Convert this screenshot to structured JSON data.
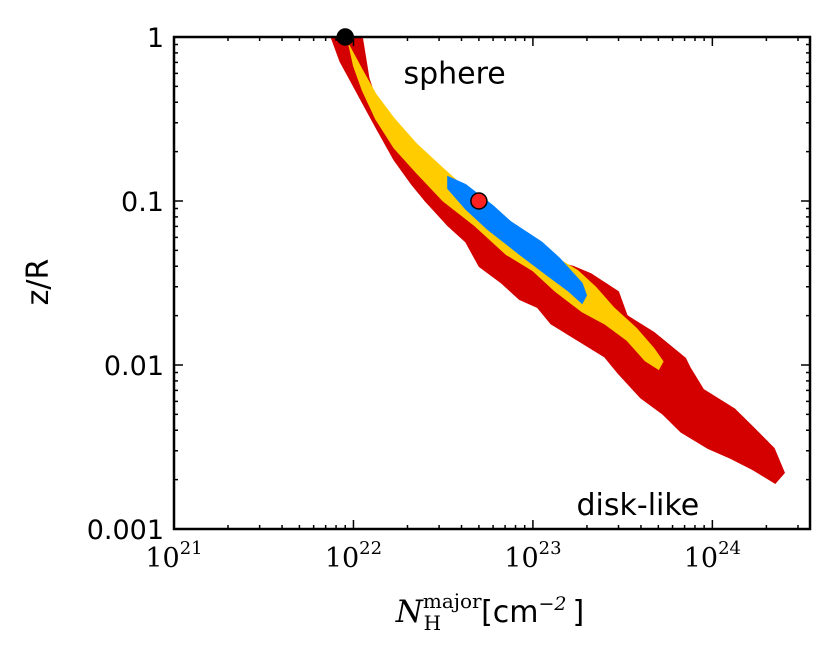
{
  "chart_data": {
    "type": "contour",
    "title": "",
    "xlabel": {
      "symbol": "N",
      "subscript": "H",
      "superscript": "major",
      "unit_prefix": "[cm",
      "unit_exponent": "−2",
      "unit_suffix": "]"
    },
    "ylabel": "z/R",
    "xscale": "log",
    "yscale": "log",
    "xlim": [
      1e+21,
      3.5e+24
    ],
    "ylim": [
      0.001,
      1
    ],
    "xticks": [
      {
        "value": 1e+21,
        "base": "10",
        "exp": "21"
      },
      {
        "value": 1e+22,
        "base": "10",
        "exp": "22"
      },
      {
        "value": 1e+23,
        "base": "10",
        "exp": "23"
      },
      {
        "value": 1e+24,
        "base": "10",
        "exp": "24"
      }
    ],
    "yticks": [
      {
        "value": 1,
        "label": "1"
      },
      {
        "value": 0.1,
        "label": "0.1"
      },
      {
        "value": 0.01,
        "label": "0.01"
      },
      {
        "value": 0.001,
        "label": "0.001"
      }
    ],
    "grid": false,
    "annotations": [
      {
        "text": "sphere",
        "x": 1.9e+22,
        "y": 0.6
      },
      {
        "text": "disk-like",
        "x": 1.75e+23,
        "y": 0.0014
      }
    ],
    "regions": [
      {
        "level": "outer",
        "color": "#d40000",
        "points": [
          [
            7.5e+21,
            1.0
          ],
          [
            1.12e+22,
            1.0
          ],
          [
            1.22e+22,
            0.56
          ],
          [
            1.41e+22,
            0.35
          ],
          [
            1.86e+22,
            0.28
          ],
          [
            2.22e+22,
            0.2
          ],
          [
            3.16e+22,
            0.14
          ],
          [
            4.47e+22,
            0.11
          ],
          [
            4.73e+22,
            0.094
          ],
          [
            6.31e+22,
            0.071
          ],
          [
            7.08e+22,
            0.063
          ],
          [
            7.5e+22,
            0.056
          ],
          [
            1.12e+23,
            0.048
          ],
          [
            1.41e+23,
            0.042
          ],
          [
            1.68e+23,
            0.04
          ],
          [
            2.11e+23,
            0.036
          ],
          [
            3e+23,
            0.028
          ],
          [
            3.35e+23,
            0.02
          ],
          [
            4.73e+23,
            0.0158
          ],
          [
            7.08e+23,
            0.011
          ],
          [
            7.5e+23,
            0.0097
          ],
          [
            8.91e+23,
            0.0071
          ],
          [
            1.33e+24,
            0.0054
          ],
          [
            1.68e+24,
            0.0042
          ],
          [
            2.21e+24,
            0.0031
          ],
          [
            2.52e+24,
            0.0022
          ],
          [
            2.24e+24,
            0.0019
          ],
          [
            1.68e+24,
            0.0023
          ],
          [
            1.26e+24,
            0.0027
          ],
          [
            9.44e+23,
            0.0031
          ],
          [
            6.68e+23,
            0.0039
          ],
          [
            5.31e+23,
            0.005
          ],
          [
            3.98e+23,
            0.0063
          ],
          [
            2.98e+23,
            0.0089
          ],
          [
            2.51e+23,
            0.0112
          ],
          [
            1.78e+23,
            0.0141
          ],
          [
            1.26e+23,
            0.0178
          ],
          [
            1.06e+23,
            0.0224
          ],
          [
            8.41e+22,
            0.0251
          ],
          [
            6.68e+22,
            0.0316
          ],
          [
            5.02e+22,
            0.0398
          ],
          [
            4.22e+22,
            0.0562
          ],
          [
            3.35e+22,
            0.0708
          ],
          [
            2.51e+22,
            0.1
          ],
          [
            2.11e+22,
            0.126
          ],
          [
            1.68e+22,
            0.178
          ],
          [
            1.33e+22,
            0.282
          ],
          [
            1.12e+22,
            0.398
          ],
          [
            9.44e+21,
            0.562
          ],
          [
            8.41e+21,
            0.708
          ]
        ]
      },
      {
        "level": "middle",
        "color": "#ffcc00",
        "points": [
          [
            9.44e+21,
            0.89
          ],
          [
            1.12e+22,
            0.63
          ],
          [
            1.33e+22,
            0.45
          ],
          [
            1.68e+22,
            0.32
          ],
          [
            2.24e+22,
            0.224
          ],
          [
            3.16e+22,
            0.158
          ],
          [
            4.22e+22,
            0.119
          ],
          [
            5.96e+22,
            0.084
          ],
          [
            8.41e+22,
            0.063
          ],
          [
            1.26e+23,
            0.0473
          ],
          [
            1.78e+23,
            0.0376
          ],
          [
            2.24e+23,
            0.0298
          ],
          [
            2.82e+23,
            0.0224
          ],
          [
            3.76e+23,
            0.0168
          ],
          [
            4.73e+23,
            0.0126
          ],
          [
            5.31e+23,
            0.0105
          ],
          [
            5.02e+23,
            0.0094
          ],
          [
            4.22e+23,
            0.0106
          ],
          [
            3.35e+23,
            0.0141
          ],
          [
            2.51e+23,
            0.0178
          ],
          [
            1.88e+23,
            0.0211
          ],
          [
            1.33e+23,
            0.0282
          ],
          [
            1e+23,
            0.0376
          ],
          [
            7.08e+22,
            0.0473
          ],
          [
            4.73e+22,
            0.0708
          ],
          [
            3.16e+22,
            0.1
          ],
          [
            2.24e+22,
            0.149
          ],
          [
            1.68e+22,
            0.211
          ],
          [
            1.33e+22,
            0.316
          ],
          [
            1.12e+22,
            0.473
          ],
          [
            1e+22,
            0.668
          ]
        ]
      },
      {
        "level": "inner",
        "color": "#0080ff",
        "points": [
          [
            3.35e+22,
            0.141
          ],
          [
            4.22e+22,
            0.126
          ],
          [
            5.96e+22,
            0.094
          ],
          [
            7.5e+22,
            0.075
          ],
          [
            1.12e+23,
            0.0562
          ],
          [
            1.41e+23,
            0.0447
          ],
          [
            1.88e+23,
            0.0316
          ],
          [
            1.99e+23,
            0.0266
          ],
          [
            1.88e+23,
            0.0237
          ],
          [
            1.58e+23,
            0.0282
          ],
          [
            1.19e+23,
            0.0355
          ],
          [
            8.41e+22,
            0.0473
          ],
          [
            5.62e+22,
            0.0668
          ],
          [
            4.22e+22,
            0.0891
          ],
          [
            3.35e+22,
            0.119
          ]
        ]
      }
    ],
    "markers": [
      {
        "x": 5e+22,
        "y": 0.1,
        "color": "#ff2020",
        "edge": "#000000"
      },
      {
        "x": 9e+21,
        "y": 1.0,
        "color": "#000000",
        "edge": "#000000"
      }
    ]
  }
}
